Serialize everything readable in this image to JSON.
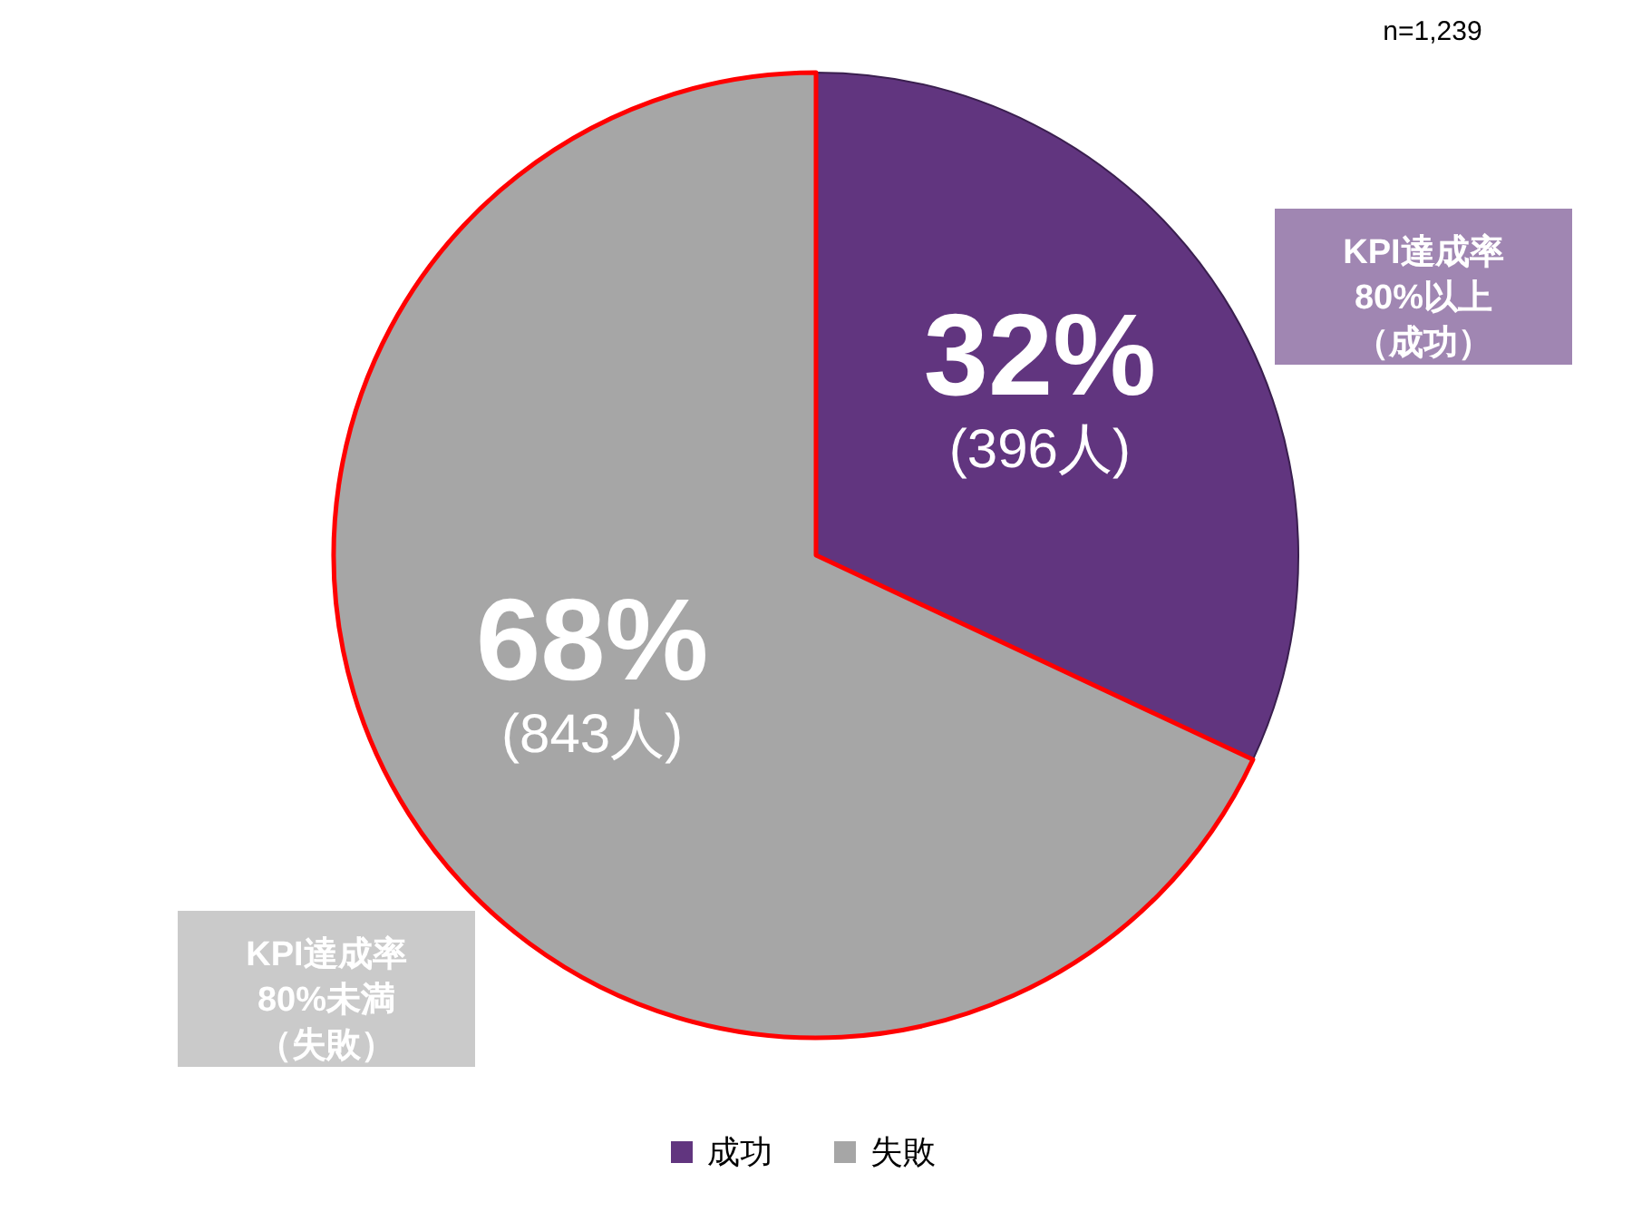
{
  "chart_data": {
    "type": "pie",
    "categories": [
      "成功",
      "失敗"
    ],
    "values": [
      396,
      843
    ],
    "colors": [
      "#61357f",
      "#a6a6a6"
    ],
    "value_labels": [
      "32%\n(396人)",
      "68%\n(843人)"
    ],
    "legend": "bottom",
    "annotations": [
      "n=1,239",
      "KPI達成率",
      "80%以上",
      "（成功）",
      "KPI達成率",
      "80%未満",
      "（失敗）"
    ]
  }
}
